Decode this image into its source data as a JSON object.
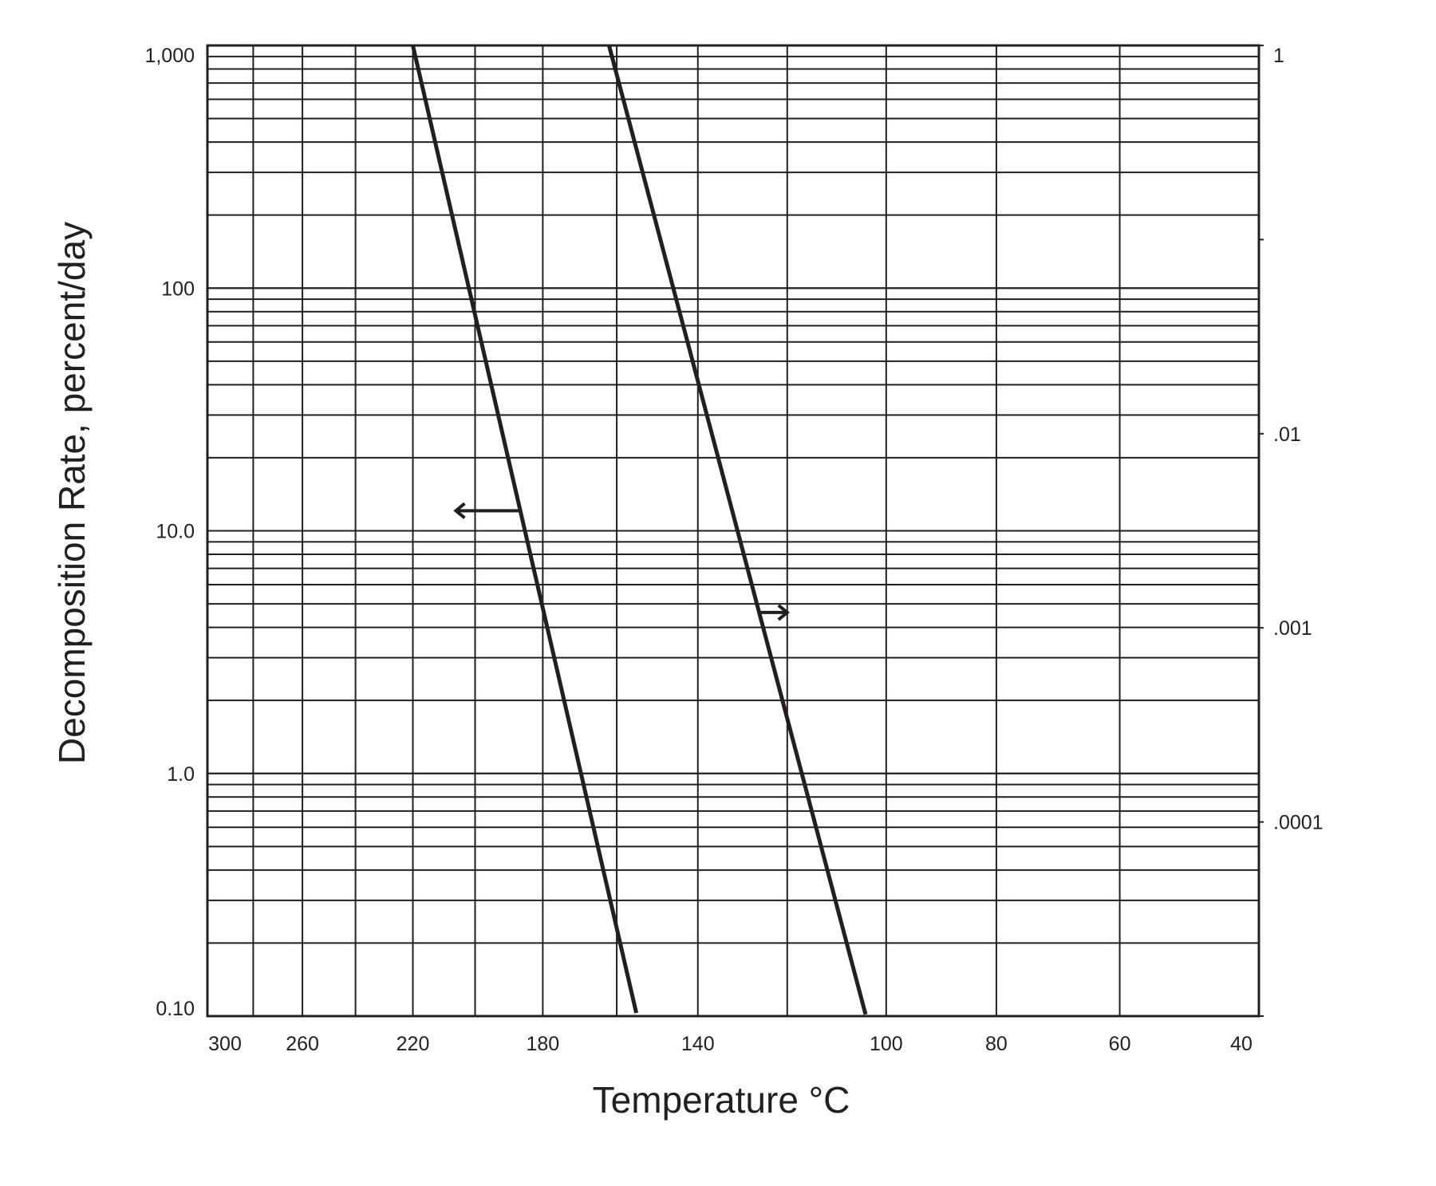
{
  "chart_data": {
    "type": "line",
    "title": "",
    "xlabel": "Temperature °C",
    "ylabel": "Decomposition Rate, percent/day",
    "x_scale": "reciprocal",
    "y_scale": "log",
    "xlim": [
      300,
      40
    ],
    "ylim": [
      0.1,
      1000
    ],
    "y2lim": [
      1e-05,
      1
    ],
    "grid": true,
    "legend": "none",
    "x_ticks": [
      "300",
      "260",
      "220",
      "180",
      "140",
      "100",
      "80",
      "60",
      "40"
    ],
    "x_tick_values": [
      300,
      260,
      220,
      180,
      140,
      100,
      80,
      60,
      40
    ],
    "x_grid_values": [
      300,
      280,
      260,
      240,
      220,
      200,
      180,
      160,
      140,
      120,
      100,
      80,
      60,
      40
    ],
    "y_ticks": [
      {
        "value": 1000,
        "label": "1,000"
      },
      {
        "value": 100,
        "label": "100"
      },
      {
        "value": 10,
        "label": "10.0"
      },
      {
        "value": 1,
        "label": "1.0"
      },
      {
        "value": 0.1,
        "label": "0.10"
      }
    ],
    "y2_ticks": [
      {
        "value": 1,
        "label": "1"
      },
      {
        "value": 0.01,
        "label": ".01"
      },
      {
        "value": 0.001,
        "label": ".001"
      },
      {
        "value": 0.0001,
        "label": ".0001"
      }
    ],
    "series": [
      {
        "axis": "left",
        "x": [
          220,
          155
        ],
        "y": [
          1000,
          0.103
        ]
      },
      {
        "axis": "right",
        "x": [
          162,
          104
        ],
        "y": [
          1,
          1.02e-05
        ]
      }
    ],
    "annotations": [
      {
        "type": "arrow",
        "direction": "left",
        "series_index": 0,
        "at_y": 12.1,
        "to_x": 206
      },
      {
        "type": "arrow",
        "direction": "right",
        "series_index": 1,
        "at_y2": 0.0012,
        "to_x": 120
      }
    ],
    "colors": {
      "line": "#231f20",
      "grid": "#231f20",
      "background": "#ffffff"
    }
  }
}
